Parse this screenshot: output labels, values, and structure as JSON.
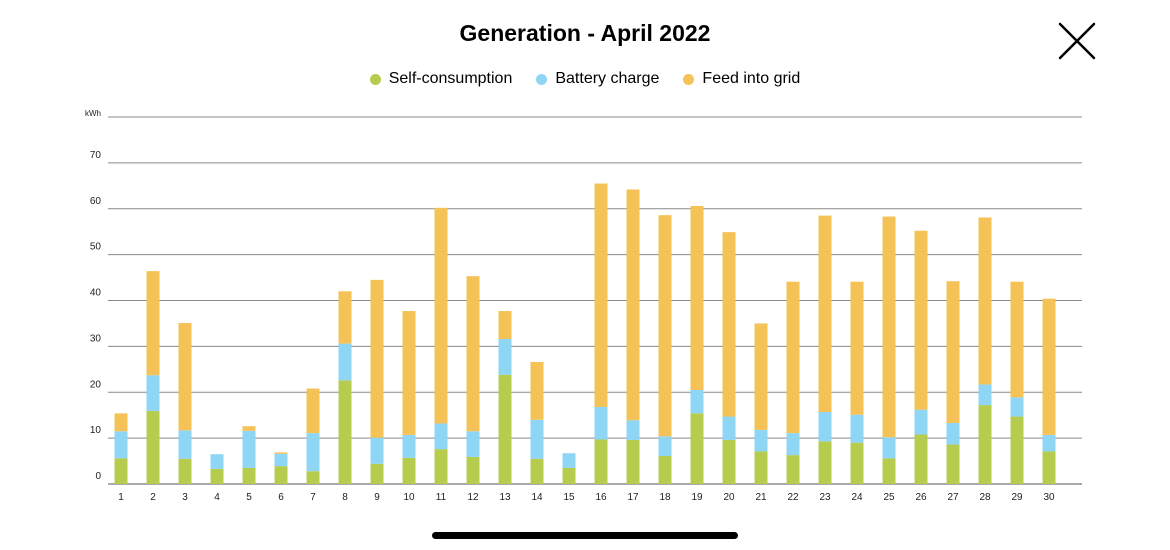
{
  "header": {
    "title": "Generation - April 2022",
    "close_icon": "close-icon"
  },
  "chart_data": {
    "type": "bar",
    "stacked": true,
    "title": "Generation - April 2022",
    "ylabel": "kWh",
    "xlabel": "",
    "ylim": [
      0,
      80
    ],
    "y_ticks": [
      0,
      10,
      20,
      30,
      40,
      50,
      60,
      70
    ],
    "grid": true,
    "legend_position": "top-center",
    "categories": [
      "1",
      "2",
      "3",
      "4",
      "5",
      "6",
      "7",
      "8",
      "9",
      "10",
      "11",
      "12",
      "13",
      "14",
      "15",
      "16",
      "17",
      "18",
      "19",
      "20",
      "21",
      "22",
      "23",
      "24",
      "25",
      "26",
      "27",
      "28",
      "29",
      "30"
    ],
    "series": [
      {
        "name": "Self-consumption",
        "color": "#b5cc4e",
        "values": [
          5.6,
          15.9,
          5.5,
          3.3,
          3.5,
          3.9,
          2.8,
          22.6,
          4.4,
          5.7,
          7.6,
          5.9,
          23.8,
          5.5,
          3.5,
          9.7,
          9.6,
          6.1,
          15.4,
          9.6,
          7.1,
          6.3,
          9.3,
          9.0,
          5.6,
          10.8,
          8.6,
          17.2,
          14.7,
          7.1
        ]
      },
      {
        "name": "Battery charge",
        "color": "#8fd5f4",
        "values": [
          5.9,
          7.8,
          6.2,
          3.2,
          8.1,
          2.7,
          8.3,
          8.0,
          5.7,
          5.0,
          5.6,
          5.6,
          7.8,
          8.5,
          3.2,
          7.1,
          4.3,
          4.3,
          5.1,
          5.1,
          4.7,
          4.8,
          6.4,
          6.1,
          4.6,
          5.4,
          4.7,
          4.5,
          4.2,
          3.6
        ]
      },
      {
        "name": "Feed into grid",
        "color": "#f4c256",
        "values": [
          3.9,
          22.7,
          23.4,
          0,
          1.0,
          0.3,
          9.7,
          11.4,
          34.4,
          27.0,
          47.0,
          33.8,
          6.1,
          12.6,
          0,
          48.7,
          50.3,
          48.2,
          40.1,
          40.2,
          23.2,
          33.0,
          42.8,
          29.0,
          48.1,
          39.0,
          30.9,
          36.4,
          25.2,
          29.7
        ]
      }
    ]
  }
}
